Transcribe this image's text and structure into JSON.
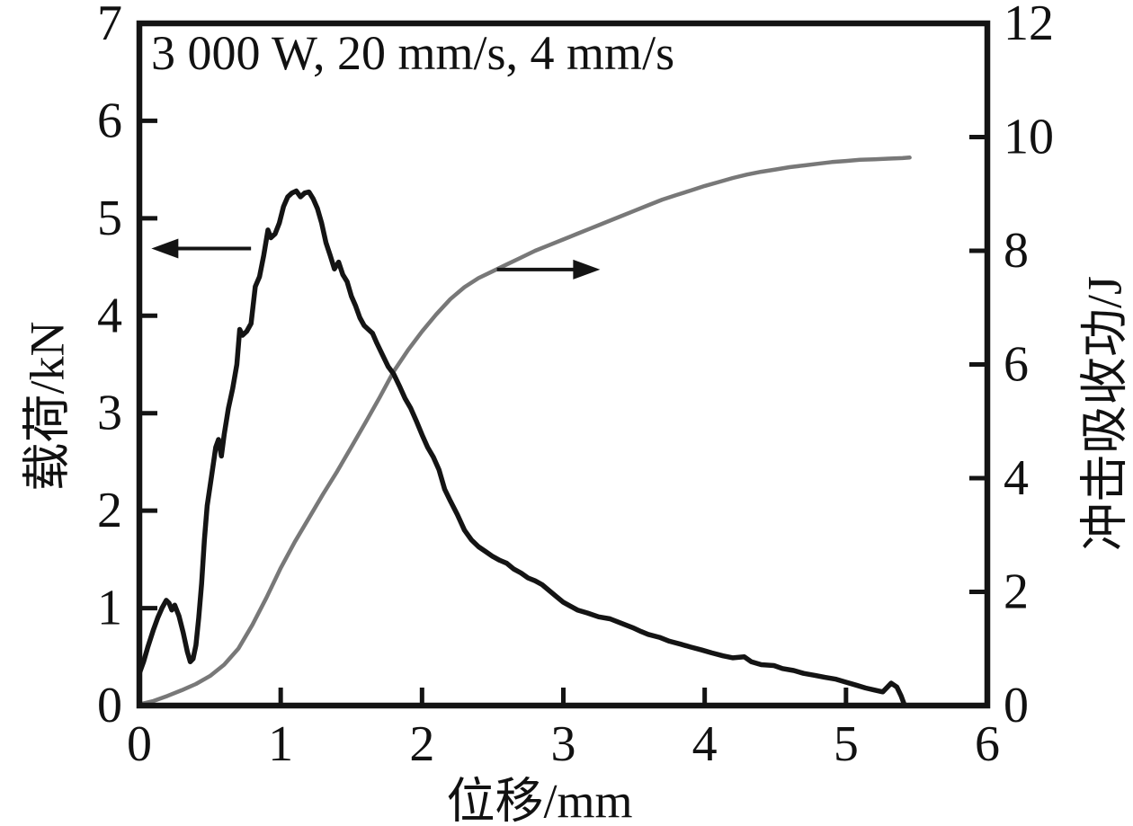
{
  "chart_data": {
    "type": "line",
    "annotation": "3 000 W, 20 mm/s, 4 mm/s",
    "xlabel": "位移/mm",
    "ylabel_left": "载荷/kN",
    "ylabel_right": "冲击吸收功/J",
    "xlim": [
      0,
      6
    ],
    "ylim_left": [
      0,
      7
    ],
    "ylim_right": [
      0,
      12
    ],
    "x_ticks": [
      0,
      1,
      2,
      3,
      4,
      5,
      6
    ],
    "y_left_ticks": [
      0,
      1,
      2,
      3,
      4,
      5,
      6,
      7
    ],
    "y_right_ticks": [
      0,
      2,
      4,
      6,
      8,
      10,
      12
    ],
    "grid": false,
    "legend_position": "none",
    "axis_color": "#141414",
    "background_color": "#ffffff",
    "series": [
      {
        "name": "energy-curve",
        "label": "冲击吸收功",
        "axis": "right",
        "color": "#787878",
        "stroke_width": 4.5,
        "points": [
          [
            0,
            0.02
          ],
          [
            0.1,
            0.08
          ],
          [
            0.2,
            0.17
          ],
          [
            0.3,
            0.27
          ],
          [
            0.4,
            0.38
          ],
          [
            0.5,
            0.52
          ],
          [
            0.6,
            0.72
          ],
          [
            0.7,
            1.0
          ],
          [
            0.8,
            1.42
          ],
          [
            0.9,
            1.9
          ],
          [
            1.0,
            2.42
          ],
          [
            1.1,
            2.88
          ],
          [
            1.2,
            3.3
          ],
          [
            1.3,
            3.72
          ],
          [
            1.4,
            4.12
          ],
          [
            1.5,
            4.55
          ],
          [
            1.6,
            4.98
          ],
          [
            1.7,
            5.42
          ],
          [
            1.8,
            5.88
          ],
          [
            1.9,
            6.25
          ],
          [
            2.0,
            6.58
          ],
          [
            2.1,
            6.88
          ],
          [
            2.2,
            7.15
          ],
          [
            2.3,
            7.36
          ],
          [
            2.4,
            7.52
          ],
          [
            2.5,
            7.64
          ],
          [
            2.6,
            7.76
          ],
          [
            2.7,
            7.88
          ],
          [
            2.8,
            8.0
          ],
          [
            2.9,
            8.1
          ],
          [
            3.0,
            8.2
          ],
          [
            3.1,
            8.3
          ],
          [
            3.2,
            8.4
          ],
          [
            3.3,
            8.5
          ],
          [
            3.4,
            8.6
          ],
          [
            3.5,
            8.7
          ],
          [
            3.6,
            8.8
          ],
          [
            3.7,
            8.9
          ],
          [
            3.8,
            8.98
          ],
          [
            3.9,
            9.06
          ],
          [
            4.0,
            9.14
          ],
          [
            4.1,
            9.21
          ],
          [
            4.2,
            9.28
          ],
          [
            4.3,
            9.34
          ],
          [
            4.4,
            9.39
          ],
          [
            4.5,
            9.43
          ],
          [
            4.6,
            9.47
          ],
          [
            4.7,
            9.5
          ],
          [
            4.8,
            9.53
          ],
          [
            4.9,
            9.56
          ],
          [
            5.0,
            9.58
          ],
          [
            5.1,
            9.6
          ],
          [
            5.2,
            9.61
          ],
          [
            5.3,
            9.62
          ],
          [
            5.4,
            9.63
          ],
          [
            5.45,
            9.64
          ]
        ]
      },
      {
        "name": "load-curve",
        "label": "载荷",
        "axis": "left",
        "color": "#141414",
        "stroke_width": 5.5,
        "points": [
          [
            0,
            0.33
          ],
          [
            0.03,
            0.45
          ],
          [
            0.06,
            0.6
          ],
          [
            0.1,
            0.78
          ],
          [
            0.13,
            0.9
          ],
          [
            0.16,
            1.0
          ],
          [
            0.19,
            1.08
          ],
          [
            0.21,
            1.05
          ],
          [
            0.23,
            0.98
          ],
          [
            0.25,
            1.03
          ],
          [
            0.28,
            0.92
          ],
          [
            0.31,
            0.75
          ],
          [
            0.34,
            0.55
          ],
          [
            0.36,
            0.45
          ],
          [
            0.38,
            0.48
          ],
          [
            0.4,
            0.62
          ],
          [
            0.42,
            0.9
          ],
          [
            0.44,
            1.25
          ],
          [
            0.46,
            1.7
          ],
          [
            0.48,
            2.05
          ],
          [
            0.51,
            2.35
          ],
          [
            0.54,
            2.65
          ],
          [
            0.56,
            2.73
          ],
          [
            0.58,
            2.56
          ],
          [
            0.6,
            2.78
          ],
          [
            0.63,
            3.05
          ],
          [
            0.66,
            3.25
          ],
          [
            0.69,
            3.5
          ],
          [
            0.71,
            3.86
          ],
          [
            0.73,
            3.8
          ],
          [
            0.76,
            3.84
          ],
          [
            0.79,
            3.92
          ],
          [
            0.82,
            4.3
          ],
          [
            0.85,
            4.4
          ],
          [
            0.88,
            4.62
          ],
          [
            0.91,
            4.88
          ],
          [
            0.93,
            4.8
          ],
          [
            0.96,
            4.84
          ],
          [
            0.99,
            4.95
          ],
          [
            1.02,
            5.12
          ],
          [
            1.05,
            5.22
          ],
          [
            1.08,
            5.26
          ],
          [
            1.11,
            5.28
          ],
          [
            1.14,
            5.22
          ],
          [
            1.17,
            5.26
          ],
          [
            1.2,
            5.27
          ],
          [
            1.23,
            5.2
          ],
          [
            1.26,
            5.1
          ],
          [
            1.29,
            4.95
          ],
          [
            1.32,
            4.75
          ],
          [
            1.35,
            4.62
          ],
          [
            1.38,
            4.48
          ],
          [
            1.41,
            4.55
          ],
          [
            1.44,
            4.42
          ],
          [
            1.47,
            4.35
          ],
          [
            1.5,
            4.2
          ],
          [
            1.53,
            4.1
          ],
          [
            1.56,
            3.98
          ],
          [
            1.59,
            3.9
          ],
          [
            1.62,
            3.86
          ],
          [
            1.65,
            3.82
          ],
          [
            1.68,
            3.72
          ],
          [
            1.72,
            3.6
          ],
          [
            1.76,
            3.48
          ],
          [
            1.8,
            3.4
          ],
          [
            1.84,
            3.28
          ],
          [
            1.88,
            3.15
          ],
          [
            1.92,
            3.05
          ],
          [
            1.96,
            2.92
          ],
          [
            2.0,
            2.78
          ],
          [
            2.04,
            2.65
          ],
          [
            2.08,
            2.55
          ],
          [
            2.12,
            2.42
          ],
          [
            2.16,
            2.22
          ],
          [
            2.2,
            2.1
          ],
          [
            2.25,
            1.96
          ],
          [
            2.3,
            1.8
          ],
          [
            2.35,
            1.7
          ],
          [
            2.4,
            1.63
          ],
          [
            2.45,
            1.58
          ],
          [
            2.5,
            1.53
          ],
          [
            2.55,
            1.49
          ],
          [
            2.6,
            1.46
          ],
          [
            2.65,
            1.4
          ],
          [
            2.7,
            1.36
          ],
          [
            2.75,
            1.31
          ],
          [
            2.8,
            1.28
          ],
          [
            2.85,
            1.24
          ],
          [
            2.9,
            1.18
          ],
          [
            2.95,
            1.12
          ],
          [
            3.0,
            1.06
          ],
          [
            3.05,
            1.02
          ],
          [
            3.1,
            0.98
          ],
          [
            3.17,
            0.95
          ],
          [
            3.25,
            0.91
          ],
          [
            3.33,
            0.89
          ],
          [
            3.4,
            0.85
          ],
          [
            3.49,
            0.8
          ],
          [
            3.55,
            0.76
          ],
          [
            3.6,
            0.73
          ],
          [
            3.68,
            0.7
          ],
          [
            3.75,
            0.66
          ],
          [
            3.83,
            0.63
          ],
          [
            3.9,
            0.6
          ],
          [
            3.98,
            0.57
          ],
          [
            4.05,
            0.54
          ],
          [
            4.13,
            0.51
          ],
          [
            4.2,
            0.49
          ],
          [
            4.28,
            0.5
          ],
          [
            4.33,
            0.45
          ],
          [
            4.4,
            0.42
          ],
          [
            4.49,
            0.41
          ],
          [
            4.55,
            0.38
          ],
          [
            4.63,
            0.36
          ],
          [
            4.7,
            0.33
          ],
          [
            4.78,
            0.31
          ],
          [
            4.85,
            0.29
          ],
          [
            4.93,
            0.27
          ],
          [
            5.0,
            0.24
          ],
          [
            5.07,
            0.21
          ],
          [
            5.14,
            0.18
          ],
          [
            5.2,
            0.16
          ],
          [
            5.26,
            0.14
          ],
          [
            5.32,
            0.23
          ],
          [
            5.36,
            0.19
          ],
          [
            5.39,
            0.1
          ],
          [
            5.41,
            0.02
          ]
        ]
      }
    ],
    "arrows": [
      {
        "name": "left-axis-arrow",
        "direction": "left",
        "axis": "left",
        "y": 4.69,
        "x_tail": 0.79,
        "x_head": 0.085
      },
      {
        "name": "right-axis-arrow",
        "direction": "right",
        "axis": "right",
        "y": 7.67,
        "x_tail": 2.53,
        "x_head": 3.26
      }
    ]
  }
}
